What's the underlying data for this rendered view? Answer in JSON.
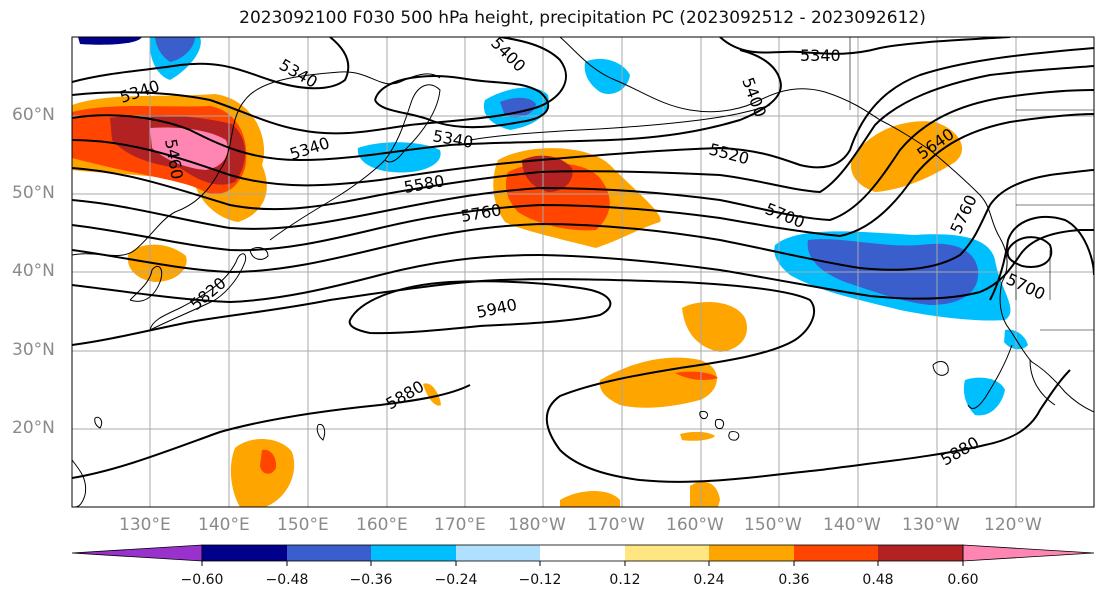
{
  "title": "2023092100 F030 500 hPa height, precipitation PC (2023092512 - 2023092612)",
  "lat_labels": [
    "60°N",
    "50°N",
    "40°N",
    "30°N",
    "20°N"
  ],
  "lon_labels": [
    "130°E",
    "140°E",
    "150°E",
    "160°E",
    "170°E",
    "180°W",
    "170°W",
    "160°W",
    "150°W",
    "140°W",
    "130°W",
    "120°W"
  ],
  "contour_labels": [
    "5340",
    "5340",
    "5340",
    "5340",
    "5340",
    "5460",
    "5400",
    "5400",
    "5520",
    "5580",
    "5640",
    "5760",
    "5700",
    "5700",
    "5760",
    "5820",
    "5940",
    "5880",
    "5880"
  ],
  "colorbar": {
    "colors": [
      "#9932cc",
      "#00008b",
      "#3a5fcd",
      "#00bfff",
      "#b0e0ff",
      "#ffffff",
      "#ffe680",
      "#ffa500",
      "#ff4500",
      "#b22222",
      "#ff85b3"
    ],
    "tick_labels": [
      "−0.60",
      "−0.48",
      "−0.36",
      "−0.24",
      "−0.12",
      "0.12",
      "0.24",
      "0.36",
      "0.48",
      "0.60"
    ]
  },
  "shading_colors": {
    "orange": "#ffa500",
    "red_orange": "#ff4500",
    "dark_red": "#b22222",
    "pink": "#ff85b3",
    "light_yellow": "#ffe680",
    "blue": "#3a5fcd",
    "sky": "#00bfff",
    "navy": "#00008b"
  }
}
